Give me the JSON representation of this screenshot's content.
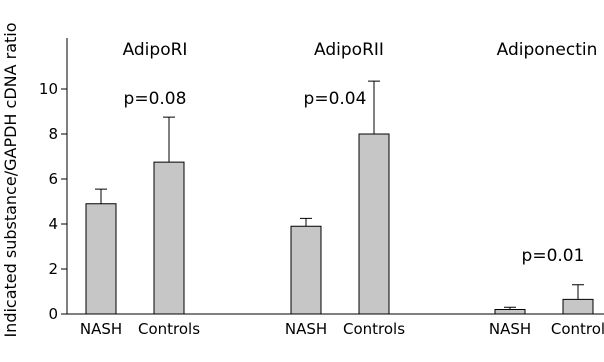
{
  "chart_data": {
    "type": "bar",
    "ylabel": "Indicated substance/GAPDH cDNA ratio",
    "ylim": [
      0,
      12
    ],
    "yticks": [
      "0",
      "2",
      "4",
      "6",
      "8",
      "10"
    ],
    "bar_color": "#c6c6c6",
    "groups": [
      {
        "title": "AdipoRI",
        "pvalue": "p=0.08",
        "categories": [
          "NASH",
          "Controls"
        ],
        "values": [
          4.9,
          6.75
        ],
        "errors": [
          0.65,
          2.0
        ]
      },
      {
        "title": "AdipoRII",
        "pvalue": "p=0.04",
        "categories": [
          "NASH",
          "Controls"
        ],
        "values": [
          3.9,
          8.0
        ],
        "errors": [
          0.35,
          2.35
        ]
      },
      {
        "title": "Adiponectin",
        "pvalue": "p=0.01",
        "categories": [
          "NASH",
          "Control"
        ],
        "values": [
          0.2,
          0.65
        ],
        "errors": [
          0.1,
          0.65
        ]
      }
    ]
  }
}
